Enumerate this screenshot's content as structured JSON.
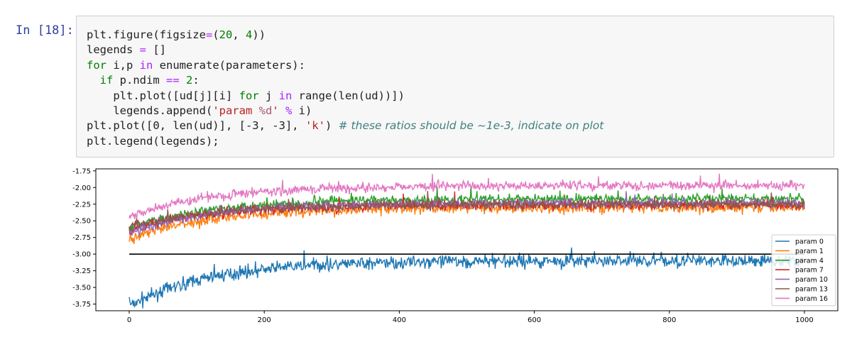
{
  "cell": {
    "prompt": "In [18]:",
    "code_lines": [
      [
        {
          "t": "plt.figure(figsize"
        },
        {
          "t": "=",
          "c": "o"
        },
        {
          "t": "("
        },
        {
          "t": "20",
          "c": "m"
        },
        {
          "t": ", "
        },
        {
          "t": "4",
          "c": "m"
        },
        {
          "t": "))"
        }
      ],
      [
        {
          "t": "legends "
        },
        {
          "t": "=",
          "c": "o"
        },
        {
          "t": " []"
        }
      ],
      [
        {
          "t": "for",
          "c": "kw"
        },
        {
          "t": " i,p "
        },
        {
          "t": "in",
          "c": "ow"
        },
        {
          "t": " enumerate(parameters):"
        }
      ],
      [
        {
          "t": "  "
        },
        {
          "t": "if",
          "c": "kw"
        },
        {
          "t": " p.ndim "
        },
        {
          "t": "==",
          "c": "o"
        },
        {
          "t": " "
        },
        {
          "t": "2",
          "c": "m"
        },
        {
          "t": ":"
        }
      ],
      [
        {
          "t": "    plt.plot([ud[j][i] "
        },
        {
          "t": "for",
          "c": "kw"
        },
        {
          "t": " j "
        },
        {
          "t": "in",
          "c": "ow"
        },
        {
          "t": " range(len(ud))])"
        }
      ],
      [
        {
          "t": "    legends.append("
        },
        {
          "t": "'param ",
          "c": "s"
        },
        {
          "t": "%d",
          "c": "si"
        },
        {
          "t": "'",
          "c": "s"
        },
        {
          "t": " "
        },
        {
          "t": "%",
          "c": "o"
        },
        {
          "t": " i)"
        }
      ],
      [
        {
          "t": "plt.plot([0, len(ud)], [-3, -3], "
        },
        {
          "t": "'k'",
          "c": "s"
        },
        {
          "t": ") "
        },
        {
          "t": "# these ratios should be ~1e-3, indicate on plot",
          "c": "c"
        }
      ],
      [
        {
          "t": "plt.legend(legends);"
        }
      ]
    ]
  },
  "chart_data": {
    "type": "line",
    "xlim": [
      0,
      1000
    ],
    "ylim": [
      -3.85,
      -1.72
    ],
    "x_ticks": [
      0,
      200,
      400,
      600,
      800,
      1000
    ],
    "y_ticks": [
      -1.75,
      -2.0,
      -2.25,
      -2.5,
      -2.75,
      -3.0,
      -3.25,
      -3.5,
      -3.75
    ],
    "y_tick_labels": [
      "-1.75",
      "-2.00",
      "-2.25",
      "-2.50",
      "-2.75",
      "-3.00",
      "-3.25",
      "-3.50",
      "-3.75"
    ],
    "grid": false,
    "legend_position": "lower-right",
    "reference_line": {
      "x": [
        0,
        1000
      ],
      "y": [
        -3,
        -3
      ],
      "color": "#000000"
    },
    "series": [
      {
        "name": "param 0",
        "color": "#1f77b4",
        "start": -3.78,
        "plateau": -3.1,
        "noise": 0.07
      },
      {
        "name": "param 1",
        "color": "#ff7f0e",
        "start": -2.78,
        "plateau": -2.3,
        "noise": 0.06
      },
      {
        "name": "param 4",
        "color": "#2ca02c",
        "start": -2.62,
        "plateau": -2.17,
        "noise": 0.05
      },
      {
        "name": "param 7",
        "color": "#d62728",
        "start": -2.65,
        "plateau": -2.26,
        "noise": 0.05
      },
      {
        "name": "param 10",
        "color": "#9467bd",
        "start": -2.68,
        "plateau": -2.23,
        "noise": 0.05
      },
      {
        "name": "param 13",
        "color": "#8c564b",
        "start": -2.6,
        "plateau": -2.25,
        "noise": 0.05
      },
      {
        "name": "param 16",
        "color": "#e377c2",
        "start": -2.45,
        "plateau": -1.97,
        "noise": 0.05
      }
    ]
  }
}
